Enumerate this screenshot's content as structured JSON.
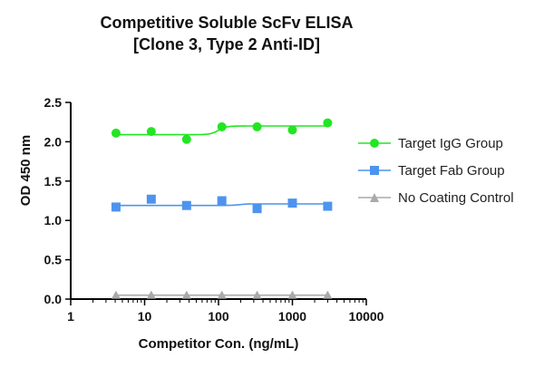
{
  "chart_data": {
    "type": "scatter",
    "title": [
      "Competitive Soluble ScFv ELISA",
      "[Clone 3, Type 2 Anti-ID]"
    ],
    "xlabel": "Competitor Con. (ng/mL)",
    "ylabel": "OD 450 nm",
    "xscale": "log",
    "xlim": [
      1,
      10000
    ],
    "ylim": [
      0,
      2.5
    ],
    "xticks": [
      "1",
      "10",
      "100",
      "1000",
      "10000"
    ],
    "yticks": [
      "0.0",
      "0.5",
      "1.0",
      "1.5",
      "2.0",
      "2.5"
    ],
    "grid": false,
    "legend": "right",
    "series": [
      {
        "name": "Target IgG Group",
        "color": "#22e622",
        "marker": "circle",
        "x": [
          4.1,
          12.3,
          37,
          111,
          333,
          1000,
          3000
        ],
        "y": [
          2.11,
          2.13,
          2.03,
          2.19,
          2.19,
          2.15,
          2.24
        ],
        "fit": {
          "bottom": 2.09,
          "top": 2.2,
          "midpoint": 100
        }
      },
      {
        "name": "Target Fab Group",
        "color": "#4d94ee",
        "marker": "square",
        "x": [
          4.1,
          12.3,
          37,
          111,
          333,
          1000,
          3000
        ],
        "y": [
          1.17,
          1.27,
          1.19,
          1.25,
          1.15,
          1.22,
          1.18
        ],
        "fit": {
          "bottom": 1.19,
          "top": 1.21,
          "midpoint": 190
        }
      },
      {
        "name": "No Coating Control",
        "color": "#aaaaaa",
        "marker": "triangle",
        "x": [
          4.1,
          12.3,
          37,
          111,
          333,
          1000,
          3000
        ],
        "y": [
          0.05,
          0.05,
          0.05,
          0.05,
          0.05,
          0.05,
          0.05
        ],
        "fit": {
          "bottom": 0.05,
          "top": 0.05,
          "midpoint": 100
        }
      }
    ]
  }
}
